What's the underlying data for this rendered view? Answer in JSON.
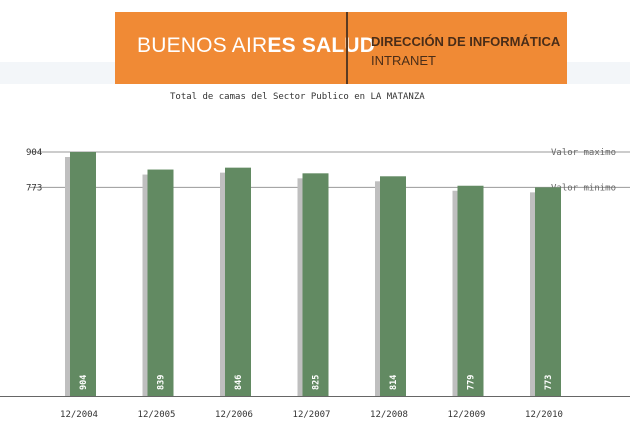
{
  "header": {
    "brand_light": "BUENOS AIR",
    "brand_bold": "ES SALUD",
    "department": "DIRECCIÓN DE INFORMÁTICA",
    "subtitle": "INTRANET",
    "color": "#f08a35"
  },
  "chart_data": {
    "type": "bar",
    "title": "Total de camas del Sector Publico en LA MATANZA",
    "categories": [
      "12/2004",
      "12/2005",
      "12/2006",
      "12/2007",
      "12/2008",
      "12/2009",
      "12/2010"
    ],
    "values": [
      904,
      839,
      846,
      825,
      814,
      779,
      773
    ],
    "ylim": [
      0,
      904
    ],
    "yticks": [
      904,
      773
    ],
    "reference_lines": [
      {
        "label": "Valor maximo",
        "value": 904
      },
      {
        "label": "Valor minimo",
        "value": 773
      }
    ],
    "bar_color": "#628a62",
    "shadow_color": "#bfbfbf",
    "xlabel": "",
    "ylabel": ""
  }
}
